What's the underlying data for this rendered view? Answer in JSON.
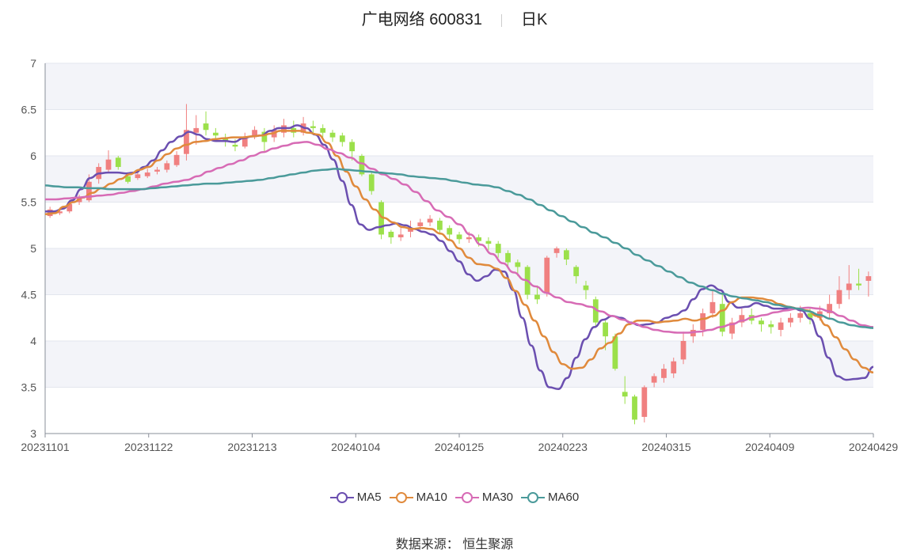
{
  "header": {
    "title": "广电网络 600831",
    "period": "日K"
  },
  "source": {
    "label": "数据来源：",
    "name": "恒生聚源"
  },
  "colors": {
    "up": "#f08080",
    "down": "#9be04a",
    "band": "#f3f4f9",
    "grid": "#e3e6ee",
    "axis": "#8a8f99",
    "text": "#555555"
  },
  "chart_data": {
    "type": "candlestick",
    "ylim": [
      3,
      7
    ],
    "yticks": [
      "3",
      "3.5",
      "4",
      "4.5",
      "5",
      "5.5",
      "6",
      "6.5",
      "7"
    ],
    "xtick_labels": [
      "20231101",
      "20231122",
      "20231213",
      "20240104",
      "20240125",
      "20240223",
      "20240315",
      "20240409",
      "20240429"
    ],
    "series": [
      {
        "name": "MA5",
        "color": "#6b4fb0",
        "values": [
          5.4,
          5.4,
          5.43,
          5.52,
          5.64,
          5.76,
          5.81,
          5.82,
          5.82,
          5.81,
          5.82,
          5.88,
          5.95,
          6.06,
          6.15,
          6.21,
          6.26,
          6.23,
          6.18,
          6.16,
          6.16,
          6.15,
          6.19,
          6.21,
          6.22,
          6.27,
          6.3,
          6.3,
          6.33,
          6.3,
          6.23,
          6.12,
          5.96,
          5.73,
          5.47,
          5.26,
          5.2,
          5.23,
          5.25,
          5.27,
          5.25,
          5.21,
          5.18,
          5.15,
          5.08,
          4.97,
          4.86,
          4.72,
          4.65,
          4.7,
          4.77,
          4.75,
          4.55,
          4.25,
          3.95,
          3.68,
          3.5,
          3.48,
          3.6,
          3.82,
          4.02,
          4.15,
          4.23,
          4.27,
          4.25,
          4.2,
          4.17,
          4.18,
          4.2,
          4.25,
          4.28,
          4.33,
          4.45,
          4.56,
          4.6,
          4.55,
          4.42,
          4.36,
          4.37,
          4.41,
          4.38,
          4.35,
          4.35,
          4.36,
          4.33,
          4.24,
          4.05,
          3.82,
          3.62,
          3.58,
          3.59,
          3.6,
          3.72
        ]
      },
      {
        "name": "MA10",
        "color": "#e08a3c",
        "values": [
          5.37,
          5.38,
          5.45,
          5.5,
          5.55,
          5.6,
          5.65,
          5.7,
          5.75,
          5.8,
          5.85,
          5.88,
          5.95,
          6.02,
          6.08,
          6.12,
          6.15,
          6.16,
          6.18,
          6.19,
          6.2,
          6.2,
          6.21,
          6.22,
          6.24,
          6.27,
          6.27,
          6.27,
          6.25,
          6.23,
          6.14,
          6.0,
          5.83,
          5.67,
          5.53,
          5.42,
          5.33,
          5.28,
          5.23,
          5.21,
          5.22,
          5.21,
          5.16,
          5.09,
          5.0,
          4.9,
          4.83,
          4.82,
          4.78,
          4.68,
          4.54,
          4.39,
          4.22,
          4.05,
          3.88,
          3.75,
          3.7,
          3.71,
          3.8,
          3.92,
          3.98,
          4.08,
          4.18,
          4.22,
          4.22,
          4.2,
          4.21,
          4.22,
          4.24,
          4.22,
          4.24,
          4.27,
          4.33,
          4.42,
          4.47,
          4.47,
          4.46,
          4.44,
          4.4,
          4.37,
          4.35,
          4.33,
          4.27,
          4.17,
          4.04,
          3.91,
          3.8,
          3.71,
          3.66
        ]
      },
      {
        "name": "MA30",
        "color": "#d76bb5",
        "values": [
          5.53,
          5.53,
          5.54,
          5.55,
          5.56,
          5.57,
          5.58,
          5.6,
          5.62,
          5.64,
          5.67,
          5.7,
          5.72,
          5.74,
          5.78,
          5.83,
          5.87,
          5.91,
          5.95,
          6.0,
          6.04,
          6.08,
          6.11,
          6.14,
          6.15,
          6.12,
          6.07,
          6.03,
          5.98,
          5.92,
          5.86,
          5.8,
          5.75,
          5.69,
          5.61,
          5.51,
          5.41,
          5.34,
          5.26,
          5.15,
          5.04,
          4.94,
          4.84,
          4.74,
          4.66,
          4.59,
          4.52,
          4.47,
          4.42,
          4.4,
          4.37,
          4.32,
          4.27,
          4.23,
          4.19,
          4.15,
          4.12,
          4.1,
          4.09,
          4.09,
          4.1,
          4.12,
          4.15,
          4.18,
          4.22,
          4.26,
          4.28,
          4.31,
          4.33,
          4.35,
          4.36,
          4.35,
          4.32,
          4.27,
          4.22,
          4.17,
          4.15
        ]
      },
      {
        "name": "MA60",
        "color": "#4a9a9a",
        "values": [
          5.68,
          5.67,
          5.66,
          5.66,
          5.65,
          5.65,
          5.64,
          5.64,
          5.64,
          5.64,
          5.65,
          5.66,
          5.67,
          5.68,
          5.69,
          5.7,
          5.7,
          5.71,
          5.72,
          5.73,
          5.74,
          5.76,
          5.78,
          5.8,
          5.82,
          5.84,
          5.85,
          5.86,
          5.85,
          5.84,
          5.83,
          5.82,
          5.81,
          5.8,
          5.78,
          5.77,
          5.76,
          5.75,
          5.73,
          5.71,
          5.69,
          5.68,
          5.66,
          5.62,
          5.58,
          5.53,
          5.47,
          5.41,
          5.35,
          5.29,
          5.23,
          5.17,
          5.12,
          5.06,
          5.0,
          4.93,
          4.87,
          4.81,
          4.75,
          4.69,
          4.63,
          4.59,
          4.55,
          4.51,
          4.48,
          4.46,
          4.44,
          4.42,
          4.39,
          4.37,
          4.35,
          4.32,
          4.28,
          4.24,
          4.2,
          4.17,
          4.15,
          4.14
        ]
      },
      {
        "name": "candles",
        "values": [
          [
            5.35,
            5.42,
            5.45,
            5.33
          ],
          [
            5.38,
            5.4,
            5.44,
            5.36
          ],
          [
            5.4,
            5.48,
            5.52,
            5.38
          ],
          [
            5.5,
            5.55,
            5.58,
            5.47
          ],
          [
            5.52,
            5.72,
            5.8,
            5.5
          ],
          [
            5.75,
            5.88,
            5.92,
            5.7
          ],
          [
            5.85,
            5.96,
            6.06,
            5.82
          ],
          [
            5.98,
            5.88,
            6.0,
            5.85
          ],
          [
            5.78,
            5.72,
            5.82,
            5.7
          ],
          [
            5.76,
            5.8,
            5.85,
            5.74
          ],
          [
            5.78,
            5.82,
            5.86,
            5.76
          ],
          [
            5.83,
            5.85,
            5.88,
            5.8
          ],
          [
            5.85,
            5.92,
            5.95,
            5.82
          ],
          [
            5.9,
            6.01,
            6.05,
            5.88
          ],
          [
            6.02,
            6.28,
            6.56,
            5.95
          ],
          [
            6.25,
            6.3,
            6.44,
            6.12
          ],
          [
            6.35,
            6.28,
            6.48,
            6.22
          ],
          [
            6.25,
            6.22,
            6.3,
            6.15
          ],
          [
            6.2,
            6.15,
            6.24,
            6.1
          ],
          [
            6.12,
            6.1,
            6.18,
            6.05
          ],
          [
            6.1,
            6.2,
            6.25,
            6.08
          ],
          [
            6.22,
            6.28,
            6.32,
            6.18
          ],
          [
            6.26,
            6.15,
            6.3,
            6.05
          ],
          [
            6.2,
            6.28,
            6.33,
            6.15
          ],
          [
            6.25,
            6.33,
            6.4,
            6.2
          ],
          [
            6.3,
            6.25,
            6.38,
            6.2
          ],
          [
            6.25,
            6.35,
            6.42,
            6.22
          ],
          [
            6.32,
            6.3,
            6.38,
            6.25
          ],
          [
            6.3,
            6.25,
            6.34,
            6.2
          ],
          [
            6.25,
            6.2,
            6.28,
            6.15
          ],
          [
            6.22,
            6.15,
            6.25,
            6.1
          ],
          [
            6.15,
            6.05,
            6.18,
            5.95
          ],
          [
            6.0,
            5.8,
            6.02,
            5.78
          ],
          [
            5.8,
            5.62,
            5.82,
            5.58
          ],
          [
            5.5,
            5.15,
            5.52,
            5.1
          ],
          [
            5.18,
            5.12,
            5.2,
            5.05
          ],
          [
            5.12,
            5.15,
            5.22,
            5.08
          ],
          [
            5.18,
            5.22,
            5.3,
            5.12
          ],
          [
            5.24,
            5.28,
            5.32,
            5.2
          ],
          [
            5.28,
            5.32,
            5.36,
            5.24
          ],
          [
            5.3,
            5.2,
            5.33,
            5.15
          ],
          [
            5.22,
            5.15,
            5.25,
            5.1
          ],
          [
            5.15,
            5.1,
            5.18,
            5.05
          ],
          [
            5.1,
            5.12,
            5.18,
            5.06
          ],
          [
            5.12,
            5.08,
            5.15,
            5.02
          ],
          [
            5.08,
            5.05,
            5.12,
            4.98
          ],
          [
            5.05,
            4.95,
            5.08,
            4.9
          ],
          [
            4.95,
            4.85,
            4.98,
            4.78
          ],
          [
            4.85,
            4.8,
            4.88,
            4.7
          ],
          [
            4.8,
            4.5,
            4.82,
            4.45
          ],
          [
            4.5,
            4.45,
            4.6,
            4.4
          ],
          [
            4.52,
            4.9,
            4.92,
            4.48
          ],
          [
            4.95,
            5.0,
            5.02,
            4.9
          ],
          [
            4.98,
            4.88,
            5.0,
            4.82
          ],
          [
            4.8,
            4.7,
            4.82,
            4.62
          ],
          [
            4.6,
            4.55,
            4.65,
            4.45
          ],
          [
            4.45,
            4.2,
            4.48,
            4.15
          ],
          [
            4.2,
            4.05,
            4.22,
            3.9
          ],
          [
            4.05,
            3.7,
            4.08,
            3.68
          ],
          [
            3.45,
            3.4,
            3.62,
            3.32
          ],
          [
            3.4,
            3.15,
            3.42,
            3.1
          ],
          [
            3.18,
            3.5,
            3.52,
            3.12
          ],
          [
            3.55,
            3.62,
            3.65,
            3.5
          ],
          [
            3.6,
            3.7,
            3.75,
            3.55
          ],
          [
            3.65,
            3.78,
            3.82,
            3.6
          ],
          [
            3.8,
            4.0,
            4.1,
            3.75
          ],
          [
            4.05,
            4.12,
            4.18,
            3.98
          ],
          [
            4.12,
            4.3,
            4.35,
            4.05
          ],
          [
            4.3,
            4.42,
            4.55,
            4.25
          ],
          [
            4.4,
            4.1,
            4.5,
            4.05
          ],
          [
            4.08,
            4.2,
            4.25,
            4.02
          ],
          [
            4.2,
            4.28,
            4.35,
            4.15
          ],
          [
            4.28,
            4.22,
            4.35,
            4.18
          ],
          [
            4.22,
            4.18,
            4.25,
            4.1
          ],
          [
            4.18,
            4.15,
            4.22,
            4.08
          ],
          [
            4.12,
            4.2,
            4.25,
            4.05
          ],
          [
            4.2,
            4.25,
            4.3,
            4.15
          ],
          [
            4.25,
            4.3,
            4.38,
            4.2
          ],
          [
            4.3,
            4.25,
            4.35,
            4.18
          ],
          [
            4.25,
            4.32,
            4.38,
            4.22
          ],
          [
            4.3,
            4.4,
            4.5,
            4.25
          ],
          [
            4.4,
            4.55,
            4.7,
            4.35
          ],
          [
            4.55,
            4.62,
            4.82,
            4.45
          ],
          [
            4.62,
            4.6,
            4.78,
            4.55
          ],
          [
            4.65,
            4.7,
            4.75,
            4.48
          ]
        ]
      }
    ]
  }
}
